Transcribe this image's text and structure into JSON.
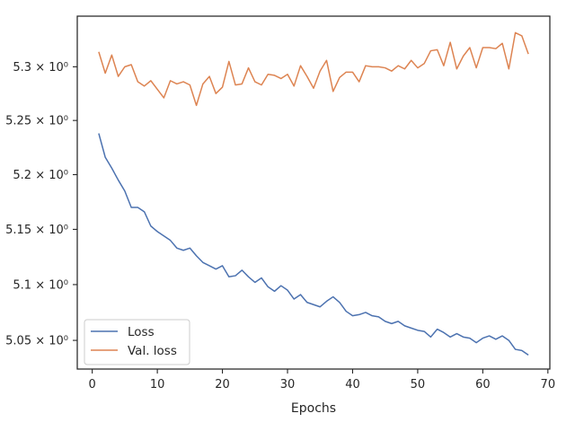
{
  "chart_data": {
    "type": "line",
    "xlabel": "Epochs",
    "ylabel": "",
    "xlim": [
      -2.3,
      70.3
    ],
    "ylim": [
      5.0245,
      5.3476
    ],
    "y_scale": "log",
    "grid": false,
    "legend_position": "lower-left",
    "x_ticks": [
      0,
      10,
      20,
      30,
      40,
      50,
      60,
      70
    ],
    "x_tick_labels": [
      "0",
      "10",
      "20",
      "30",
      "40",
      "50",
      "60",
      "70"
    ],
    "y_ticks": [
      5.05,
      5.1,
      5.15,
      5.2,
      5.25,
      5.3
    ],
    "y_tick_labels": [
      "5.05 × 10⁰",
      "5.1 × 10⁰",
      "5.15 × 10⁰",
      "5.2 × 10⁰",
      "5.25 × 10⁰",
      "5.3 × 10⁰"
    ],
    "x": [
      1,
      2,
      3,
      4,
      5,
      6,
      7,
      8,
      9,
      10,
      11,
      12,
      13,
      14,
      15,
      16,
      17,
      18,
      19,
      20,
      21,
      22,
      23,
      24,
      25,
      26,
      27,
      28,
      29,
      30,
      31,
      32,
      33,
      34,
      35,
      36,
      37,
      38,
      39,
      40,
      41,
      42,
      43,
      44,
      45,
      46,
      47,
      48,
      49,
      50,
      51,
      52,
      53,
      54,
      55,
      56,
      57,
      58,
      59,
      60,
      61,
      62,
      63,
      64,
      65,
      66,
      67
    ],
    "series": [
      {
        "name": "Loss",
        "color": "#4c72b0",
        "values": [
          5.238,
          5.216,
          5.206,
          5.195,
          5.185,
          5.17,
          5.17,
          5.166,
          5.153,
          5.148,
          5.144,
          5.14,
          5.133,
          5.131,
          5.133,
          5.126,
          5.12,
          5.117,
          5.114,
          5.117,
          5.107,
          5.108,
          5.113,
          5.107,
          5.102,
          5.106,
          5.098,
          5.094,
          5.099,
          5.095,
          5.087,
          5.091,
          5.084,
          5.082,
          5.08,
          5.085,
          5.089,
          5.084,
          5.076,
          5.072,
          5.073,
          5.075,
          5.072,
          5.071,
          5.067,
          5.065,
          5.067,
          5.063,
          5.061,
          5.059,
          5.058,
          5.053,
          5.06,
          5.057,
          5.053,
          5.056,
          5.053,
          5.052,
          5.048,
          5.052,
          5.054,
          5.051,
          5.054,
          5.05,
          5.042,
          5.041,
          5.037
        ]
      },
      {
        "name": "Val. loss",
        "color": "#dd8452",
        "values": [
          5.314,
          5.294,
          5.311,
          5.291,
          5.3,
          5.302,
          5.286,
          5.282,
          5.287,
          5.279,
          5.271,
          5.287,
          5.284,
          5.286,
          5.283,
          5.264,
          5.284,
          5.291,
          5.275,
          5.281,
          5.305,
          5.283,
          5.284,
          5.299,
          5.286,
          5.283,
          5.293,
          5.292,
          5.289,
          5.293,
          5.282,
          5.301,
          5.291,
          5.28,
          5.296,
          5.306,
          5.277,
          5.29,
          5.295,
          5.295,
          5.286,
          5.301,
          5.3,
          5.3,
          5.299,
          5.296,
          5.301,
          5.298,
          5.306,
          5.299,
          5.303,
          5.315,
          5.316,
          5.301,
          5.323,
          5.298,
          5.31,
          5.318,
          5.299,
          5.318,
          5.318,
          5.317,
          5.322,
          5.298,
          5.332,
          5.329,
          5.312
        ]
      }
    ]
  }
}
